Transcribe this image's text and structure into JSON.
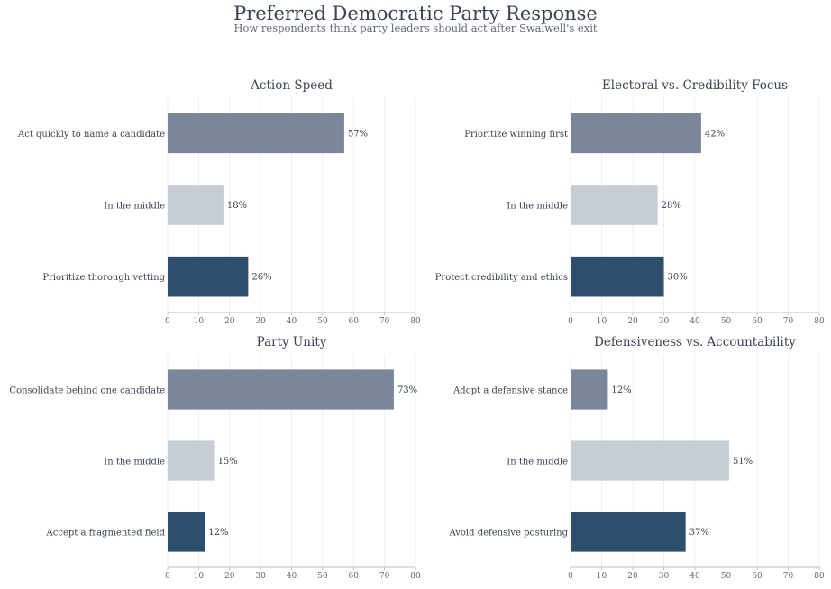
{
  "page": {
    "title": "Preferred Democratic Party Response",
    "subtitle": "How respondents think party leaders should act after Swalwell's exit"
  },
  "colors": {
    "series": [
      "#7a879b",
      "#c6cdd5",
      "#2e4e6d"
    ],
    "text": "#3a4254",
    "tick": "#5f6675",
    "grid": "#efefef",
    "axis": "#bfbfbf"
  },
  "chart_data": [
    {
      "type": "bar",
      "orientation": "horizontal",
      "title": "Action Speed",
      "categories": [
        "Act quickly to name a candidate",
        "In the middle",
        "Prioritize thorough vetting"
      ],
      "values": [
        57,
        18,
        26
      ],
      "value_labels": [
        "57%",
        "18%",
        "26%"
      ],
      "xlim": [
        0,
        80
      ],
      "xticks": [
        0,
        10,
        20,
        30,
        40,
        50,
        60,
        70,
        80
      ],
      "grid": true
    },
    {
      "type": "bar",
      "orientation": "horizontal",
      "title": "Electoral vs. Credibility Focus",
      "categories": [
        "Prioritize winning first",
        "In the middle",
        "Protect credibility and ethics"
      ],
      "values": [
        42,
        28,
        30
      ],
      "value_labels": [
        "42%",
        "28%",
        "30%"
      ],
      "xlim": [
        0,
        80
      ],
      "xticks": [
        0,
        10,
        20,
        30,
        40,
        50,
        60,
        70,
        80
      ],
      "grid": true
    },
    {
      "type": "bar",
      "orientation": "horizontal",
      "title": "Party Unity",
      "categories": [
        "Consolidate behind one candidate",
        "In the middle",
        "Accept a fragmented field"
      ],
      "values": [
        73,
        15,
        12
      ],
      "value_labels": [
        "73%",
        "15%",
        "12%"
      ],
      "xlim": [
        0,
        80
      ],
      "xticks": [
        0,
        10,
        20,
        30,
        40,
        50,
        60,
        70,
        80
      ],
      "grid": true
    },
    {
      "type": "bar",
      "orientation": "horizontal",
      "title": "Defensiveness vs. Accountability",
      "categories": [
        "Adopt a defensive stance",
        "In the middle",
        "Avoid defensive posturing"
      ],
      "values": [
        12,
        51,
        37
      ],
      "value_labels": [
        "12%",
        "51%",
        "37%"
      ],
      "xlim": [
        0,
        80
      ],
      "xticks": [
        0,
        10,
        20,
        30,
        40,
        50,
        60,
        70,
        80
      ],
      "grid": true
    }
  ]
}
